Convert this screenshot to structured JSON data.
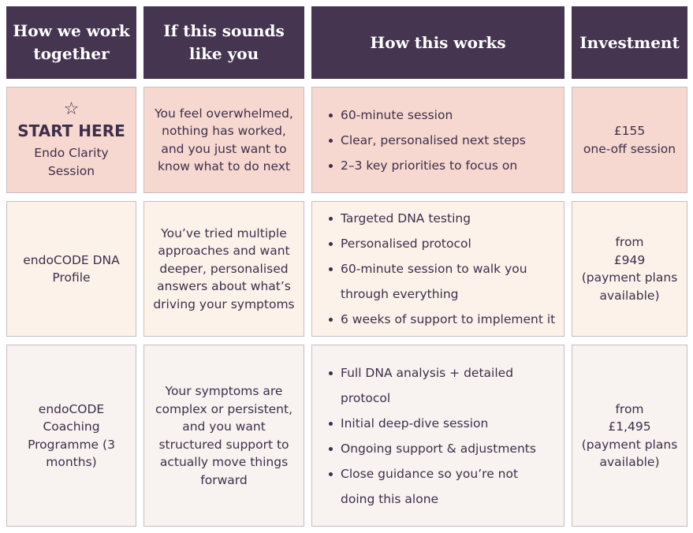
{
  "headers": [
    "How we work together",
    "If this sounds like you",
    "How this works",
    "Investment"
  ],
  "rows": [
    {
      "star": "☆",
      "badge": "START HERE",
      "name": "Endo Clarity Session",
      "fit": "You feel overwhelmed, nothing has worked, and you just want to know what to do next",
      "bullets": [
        "60-minute session",
        "Clear, personalised next steps",
        "2–3 key priorities to focus on"
      ],
      "price": "£155",
      "price_note": "one-off session"
    },
    {
      "name": "endoCODE DNA Profile",
      "fit": "You’ve tried multiple approaches and want deeper, personalised answers about what’s driving your symptoms",
      "bullets": [
        " Targeted DNA testing",
        "Personalised protocol",
        "60-minute session to walk you through everything",
        "6 weeks of support to implement it"
      ],
      "price_prefix": "from",
      "price": "£949",
      "price_note": "(payment plans available)"
    },
    {
      "name": "endoCODE Coaching Programme (3 months)",
      "fit": "Your symptoms are complex or persistent, and you want structured support to actually move things forward",
      "bullets": [
        "Full DNA analysis + detailed protocol",
        "Initial deep-dive session",
        "Ongoing support & adjustments",
        "Close guidance so you’re not doing this alone"
      ],
      "price_prefix": "from",
      "price": "£1,495",
      "price_note": "(payment plans available)"
    }
  ]
}
